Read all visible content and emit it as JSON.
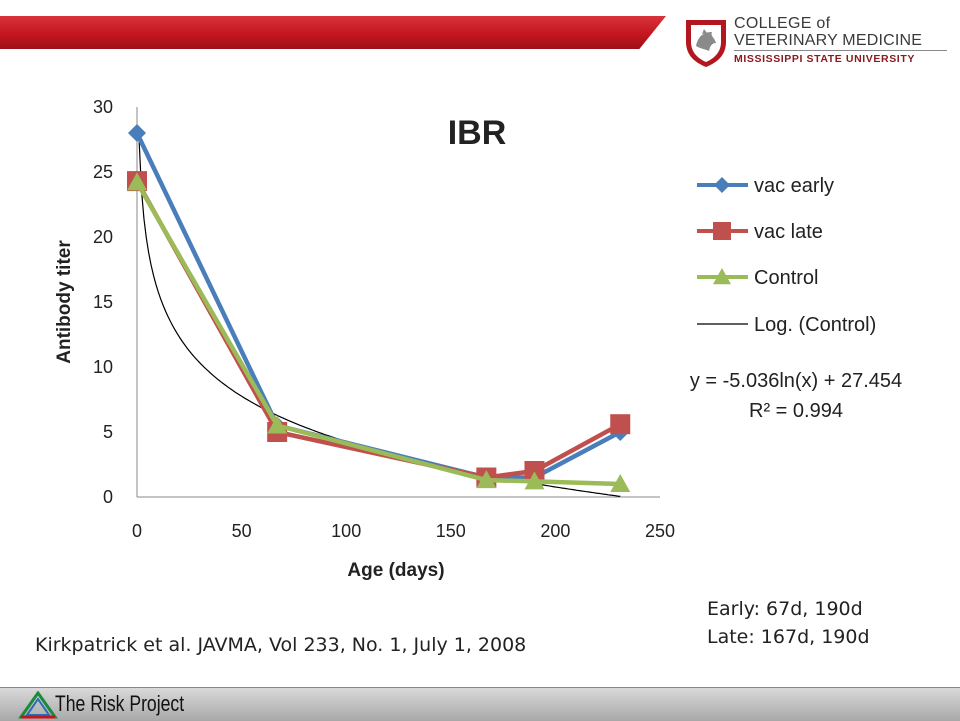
{
  "header": {
    "logo_line1": "COLLEGE of",
    "logo_line2": "VETERINARY MEDICINE",
    "logo_line3": "MISSISSIPPI STATE UNIVERSITY",
    "accent_color": "#c4161f"
  },
  "chart_data": {
    "type": "line",
    "title": "IBR",
    "xlabel": "Age (days)",
    "ylabel": "Antibody titer",
    "xlim": [
      0,
      250
    ],
    "ylim": [
      0,
      30
    ],
    "x_ticks": [
      0,
      50,
      100,
      150,
      200,
      250
    ],
    "y_ticks": [
      0,
      5,
      10,
      15,
      20,
      25,
      30
    ],
    "grid": false,
    "legend_position": "right",
    "series": [
      {
        "name": "vac early",
        "color": "#4a7ebb",
        "marker": "diamond",
        "x": [
          0,
          67,
          167,
          190,
          231
        ],
        "y": [
          28,
          5.5,
          1.5,
          1.5,
          5
        ]
      },
      {
        "name": "vac late",
        "color": "#c0504d",
        "marker": "square",
        "x": [
          0,
          67,
          167,
          190,
          231
        ],
        "y": [
          24.3,
          5,
          1.5,
          2,
          5.6
        ]
      },
      {
        "name": "Control",
        "color": "#9bbb59",
        "marker": "triangle",
        "x": [
          0,
          67,
          167,
          190,
          231
        ],
        "y": [
          24.2,
          5.5,
          1.3,
          1.2,
          1
        ]
      }
    ],
    "trendline": {
      "name": "Log. (Control)",
      "color": "#000000",
      "equation": "y = -5.036ln(x) + 27.454",
      "r_squared": "R² = 0.994",
      "a": -5.036,
      "b": 27.454,
      "x_range": [
        1,
        231
      ]
    }
  },
  "notes": {
    "early": "Early: 67d, 190d",
    "late": "Late: 167d, 190d"
  },
  "citation": "Kirkpatrick et al. JAVMA, Vol 233, No. 1, July 1, 2008",
  "footer": {
    "title": "The Risk Project"
  }
}
